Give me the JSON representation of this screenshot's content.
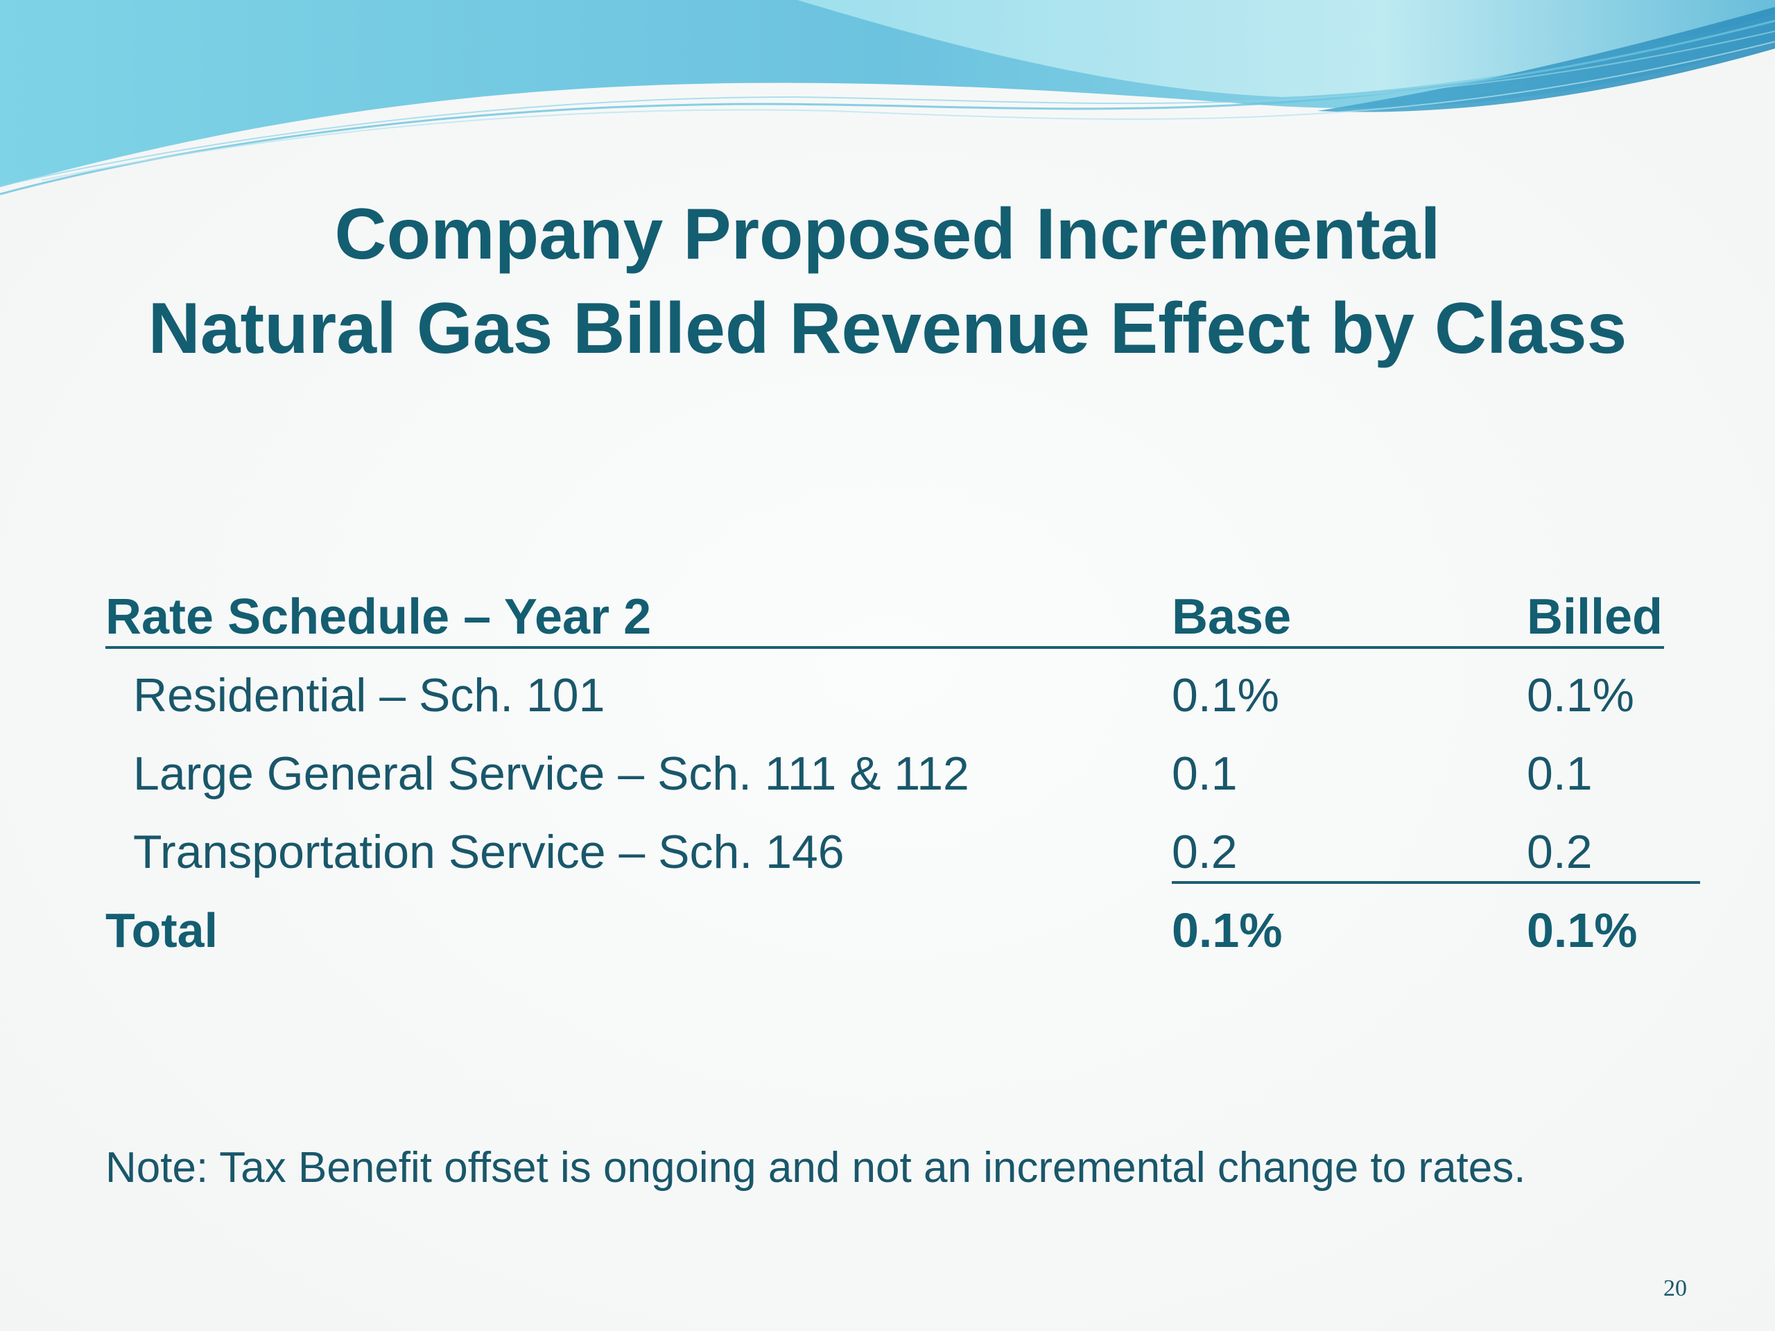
{
  "slide": {
    "title_line1": "Company Proposed Incremental",
    "title_line2": "Natural Gas Billed Revenue Effect by Class",
    "page_number": "20"
  },
  "table": {
    "headers": {
      "label": "Rate Schedule – Year 2",
      "base": "Base",
      "billed": "Billed"
    },
    "rows": [
      {
        "label": "Residential – Sch. 101",
        "base": "0.1%",
        "billed": "0.1%"
      },
      {
        "label": "Large General Service – Sch. 111 & 112",
        "base": "0.1",
        "billed": "0.1"
      },
      {
        "label": "Transportation Service – Sch. 146",
        "base": "0.2",
        "billed": "0.2"
      }
    ],
    "total": {
      "label": "Total",
      "base": "0.1%",
      "billed": "0.1%"
    }
  },
  "note": "Note: Tax Benefit offset is ongoing and not an incremental change to rates.",
  "colors": {
    "title": "#145e71",
    "text": "#19576a",
    "wave_light": "#8fd4e6",
    "wave_dark": "#4fb0d0"
  }
}
